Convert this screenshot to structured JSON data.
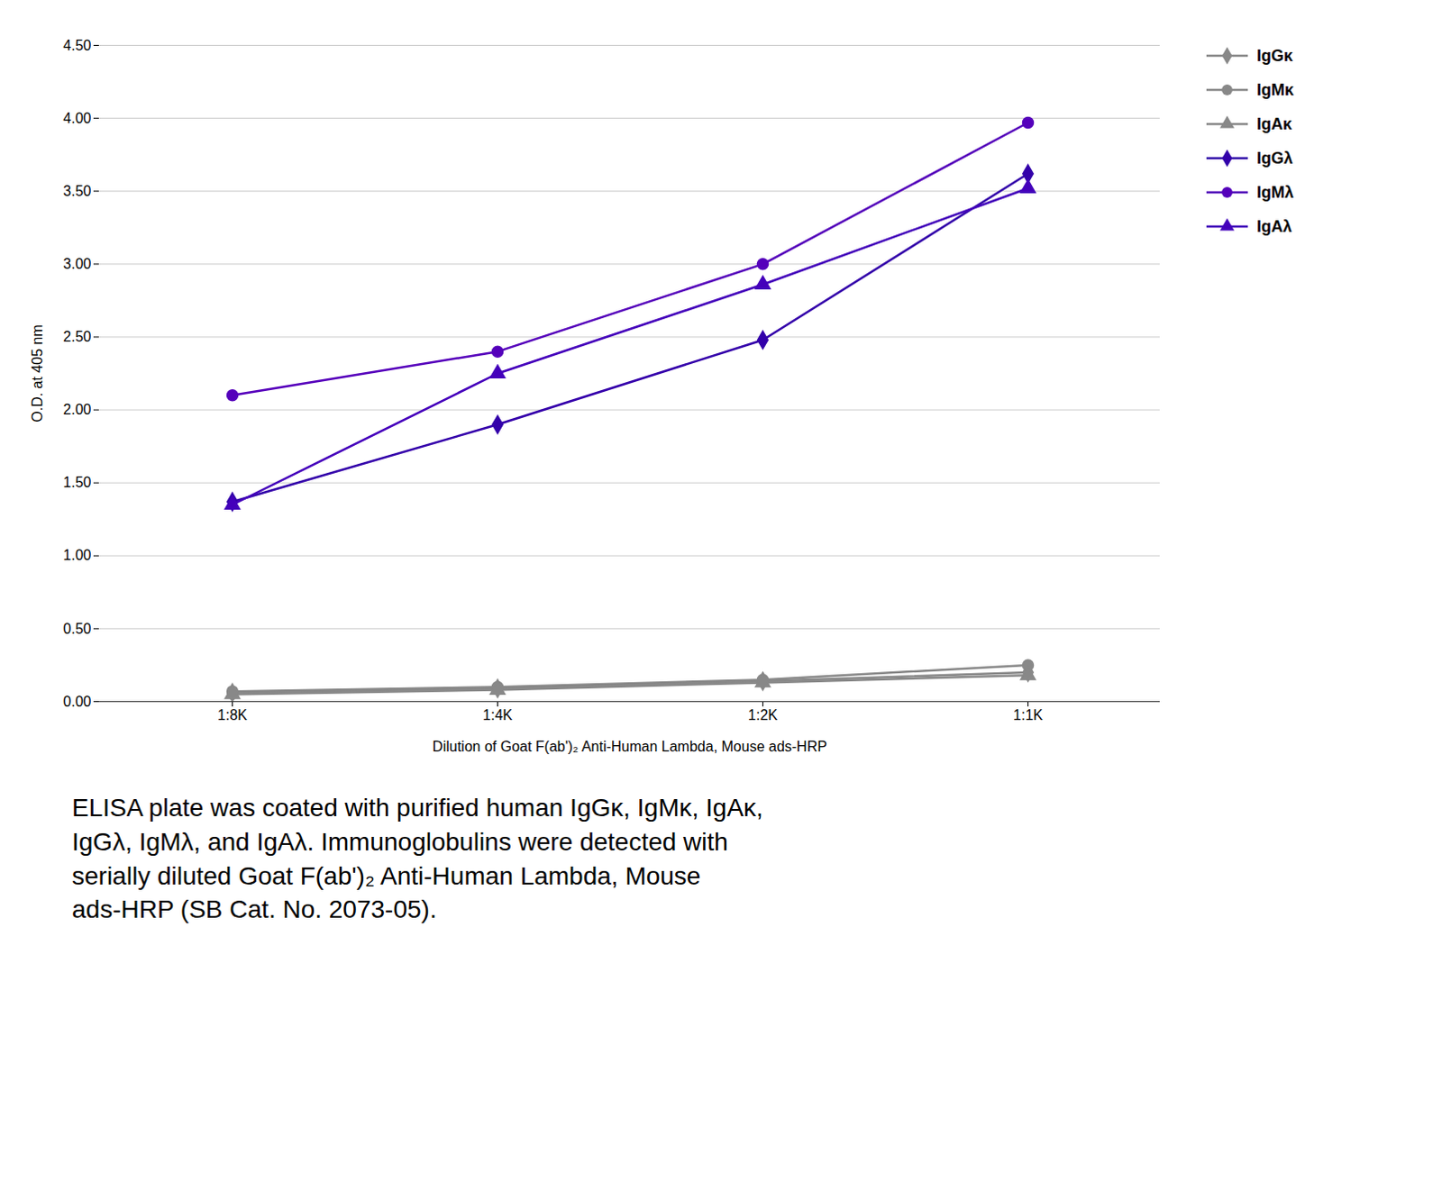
{
  "chart_data": {
    "type": "line",
    "categories": [
      "1:8K",
      "1:4K",
      "1:2K",
      "1:1K"
    ],
    "series": [
      {
        "name": "IgGκ",
        "color": "#888888",
        "marker": "diamond",
        "values": [
          0.06,
          0.09,
          0.14,
          0.2
        ]
      },
      {
        "name": "IgMκ",
        "color": "#888888",
        "marker": "circle",
        "values": [
          0.07,
          0.1,
          0.15,
          0.25
        ]
      },
      {
        "name": "IgAκ",
        "color": "#888888",
        "marker": "triangle",
        "values": [
          0.05,
          0.08,
          0.13,
          0.18
        ]
      },
      {
        "name": "IgGλ",
        "color": "#3300AA",
        "marker": "diamond",
        "values": [
          1.37,
          1.9,
          2.48,
          3.62
        ]
      },
      {
        "name": "IgMλ",
        "color": "#5500BB",
        "marker": "circle",
        "values": [
          2.1,
          2.4,
          3.0,
          3.97
        ]
      },
      {
        "name": "IgAλ",
        "color": "#4400BB",
        "marker": "triangle",
        "values": [
          1.35,
          2.25,
          2.86,
          3.52
        ]
      }
    ],
    "y_label": "O.D. at 405 nm",
    "x_label": "Dilution of Goat F(ab')₂ Anti-Human Lambda, Mouse ads-HRP",
    "ylim": [
      0.0,
      4.5
    ],
    "yticks": [
      {
        "value": 0.0,
        "label": "0.00"
      },
      {
        "value": 0.5,
        "label": "0.50"
      },
      {
        "value": 1.0,
        "label": "1.00"
      },
      {
        "value": 1.5,
        "label": "1.50"
      },
      {
        "value": 2.0,
        "label": "2.00"
      },
      {
        "value": 2.5,
        "label": "2.50"
      },
      {
        "value": 3.0,
        "label": "3.00"
      },
      {
        "value": 3.5,
        "label": "3.50"
      },
      {
        "value": 4.0,
        "label": "4.00"
      },
      {
        "value": 4.5,
        "label": "4.50"
      }
    ],
    "grid": true,
    "legend": "upper right",
    "annotations": [
      "ELISA plate was coated with purified human IgGκ, IgMκ, IgAκ,\nIgGλ, IgMλ, and IgAλ.  Immunoglobulins were detected with\nserially diluted Goat F(ab')₂ Anti-Human Lambda, Mouse\nads-HRP (SB Cat. No. 2073-05)."
    ]
  }
}
